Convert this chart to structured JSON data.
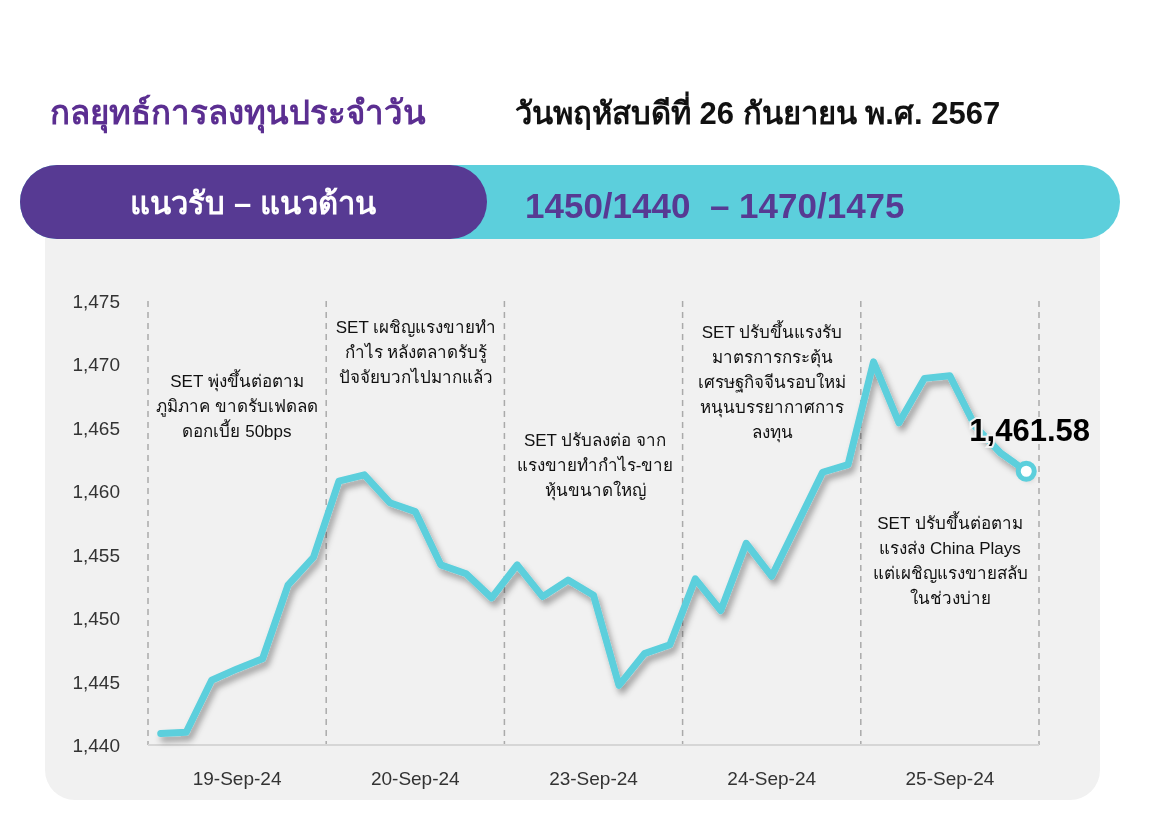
{
  "chart_data": {
    "type": "line",
    "title": "กลยุทธ์การลงทุนประจำวัน",
    "subtitle": "วันพฤหัสบดีที่ 26 กันยายน พ.ศ. 2567",
    "categories": [
      null,
      null,
      null,
      "19-Sep-24",
      null,
      null,
      null,
      null,
      null,
      null,
      "20-Sep-24",
      null,
      null,
      null,
      null,
      null,
      null,
      "23-Sep-24",
      null,
      null,
      null,
      null,
      null,
      null,
      "24-Sep-24",
      null,
      null,
      null,
      null,
      null,
      null,
      "25-Sep-24",
      null,
      null,
      null
    ],
    "ylim": [
      1440,
      1475
    ],
    "yticks": [
      {
        "value": 1440,
        "label": "1,440"
      },
      {
        "value": 1445,
        "label": "1,445"
      },
      {
        "value": 1450,
        "label": "1,450"
      },
      {
        "value": 1455,
        "label": "1,455"
      },
      {
        "value": 1460,
        "label": "1,460"
      },
      {
        "value": 1465,
        "label": "1,465"
      },
      {
        "value": 1470,
        "label": "1,470"
      },
      {
        "value": 1475,
        "label": "1,475"
      }
    ],
    "series": [
      {
        "color": "#5ccfdc",
        "values": [
          1440.9,
          1441.0,
          1445.1,
          1446.0,
          1446.8,
          1452.6,
          1454.8,
          1460.8,
          1461.3,
          1459.1,
          1458.4,
          1454.2,
          1453.5,
          1451.6,
          1454.2,
          1451.7,
          1453.0,
          1451.8,
          1444.7,
          1447.2,
          1447.9,
          1453.1,
          1450.6,
          1455.9,
          1453.3,
          1457.4,
          1461.5,
          1462.1,
          1470.2,
          1465.4,
          1468.9,
          1469.1,
          1465.1,
          1463.0,
          1461.58
        ]
      }
    ],
    "annotations": [
      "แนวรับ – แนวต้าน",
      "1450/1440  – 1470/1475",
      "SET พุ่งขึ้นต่อตาม\nภูมิภาค ขาดรับเฟดลด\nดอกเบี้ย 50bps",
      "SET เผชิญแรงขายทำ\nกำไร หลังตลาดรับรู้\nปัจจัยบวกไปมากแล้ว",
      "SET ปรับลงต่อ จาก\nแรงขายทำกำไร-ขาย\nหุ้นขนาดใหญ่",
      "SET ปรับขึ้นแรงรับ\nมาตรการกระตุ้น\nเศรษฐกิจจีนรอบใหม่\nหนุนบรรยากาศการ\nลงทุน",
      "SET ปรับขึ้นต่อตาม\nแรงส่ง China Plays\nแต่เผชิญแรงขายสลับ\nในช่วงบ่าย",
      {
        "text": "1,461.58",
        "y": 1461.58
      }
    ]
  }
}
